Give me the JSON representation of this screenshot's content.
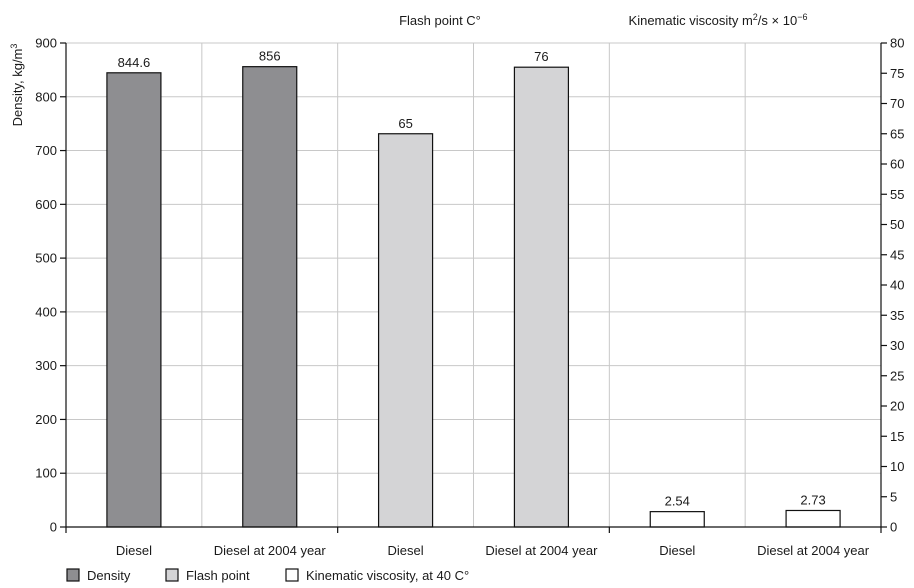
{
  "chart_data": {
    "type": "bar",
    "panel_titles": [
      {
        "text": "Flash point C°"
      },
      {
        "text": "Kinematic viscosity m",
        "sup": "2",
        "after": "/s × 10",
        "sup2": "−6"
      }
    ],
    "y_left": {
      "label": "Density, kg/m",
      "label_sup": "3",
      "lim": [
        0,
        900
      ],
      "ticks": [
        0,
        100,
        200,
        300,
        400,
        500,
        600,
        700,
        800,
        900
      ]
    },
    "y_right": {
      "lim": [
        0,
        80
      ],
      "ticks": [
        0,
        5,
        10,
        15,
        20,
        25,
        30,
        35,
        40,
        45,
        50,
        55,
        60,
        65,
        70,
        75,
        80
      ]
    },
    "grid": true,
    "legend_position": "bottom-left",
    "series": [
      {
        "name": "Density",
        "color": "#8e8e91",
        "axis": "left",
        "group": 0,
        "points": [
          {
            "category": "Diesel",
            "value": 844.6,
            "label": "844.6"
          },
          {
            "category": "Diesel at 2004 year",
            "value": 856,
            "label": "856"
          }
        ]
      },
      {
        "name": "Flash point",
        "color": "#d4d4d6",
        "axis": "right",
        "group": 1,
        "points": [
          {
            "category": "Diesel",
            "value": 65,
            "label": "65"
          },
          {
            "category": "Diesel at 2004 year",
            "value": 76,
            "label": "76"
          }
        ]
      },
      {
        "name": "Kinematic viscosity, at 40 C°",
        "color": "#ffffff",
        "axis": "right",
        "group": 2,
        "points": [
          {
            "category": "Diesel",
            "value": 2.54,
            "label": "2.54"
          },
          {
            "category": "Diesel at 2004 year",
            "value": 2.73,
            "label": "2.73"
          }
        ]
      }
    ]
  }
}
